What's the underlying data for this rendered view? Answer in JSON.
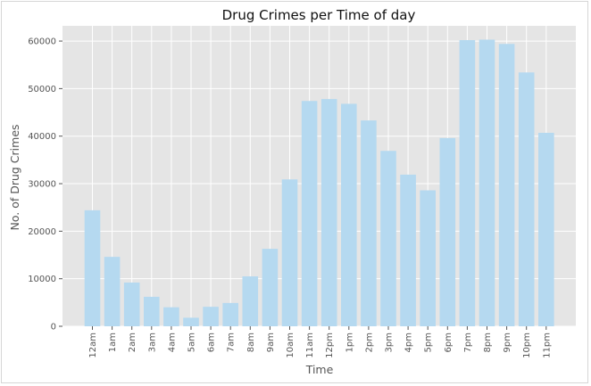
{
  "chart_data": {
    "type": "bar",
    "title": "Drug Crimes per Time of day",
    "xlabel": "Time",
    "ylabel": "No. of Drug Crimes",
    "categories": [
      "12am",
      "1am",
      "2am",
      "3am",
      "4am",
      "5am",
      "6am",
      "7am",
      "8am",
      "9am",
      "10am",
      "11am",
      "12pm",
      "1pm",
      "2pm",
      "3pm",
      "4pm",
      "5pm",
      "6pm",
      "7pm",
      "8pm",
      "9pm",
      "10pm",
      "11pm"
    ],
    "values": [
      24400,
      14600,
      9200,
      6200,
      4000,
      1800,
      4100,
      4900,
      10500,
      16300,
      30900,
      47400,
      47800,
      46800,
      43300,
      36900,
      31900,
      28600,
      39600,
      60200,
      60300,
      59400,
      53400,
      40700
    ],
    "yticks": [
      "0",
      "10000",
      "20000",
      "30000",
      "40000",
      "50000",
      "60000"
    ],
    "ylim": [
      0,
      63200
    ],
    "grid": true,
    "bar_color": "#b5d9f0",
    "background_color": "#e5e5e5",
    "grid_color": "#ffffff"
  }
}
